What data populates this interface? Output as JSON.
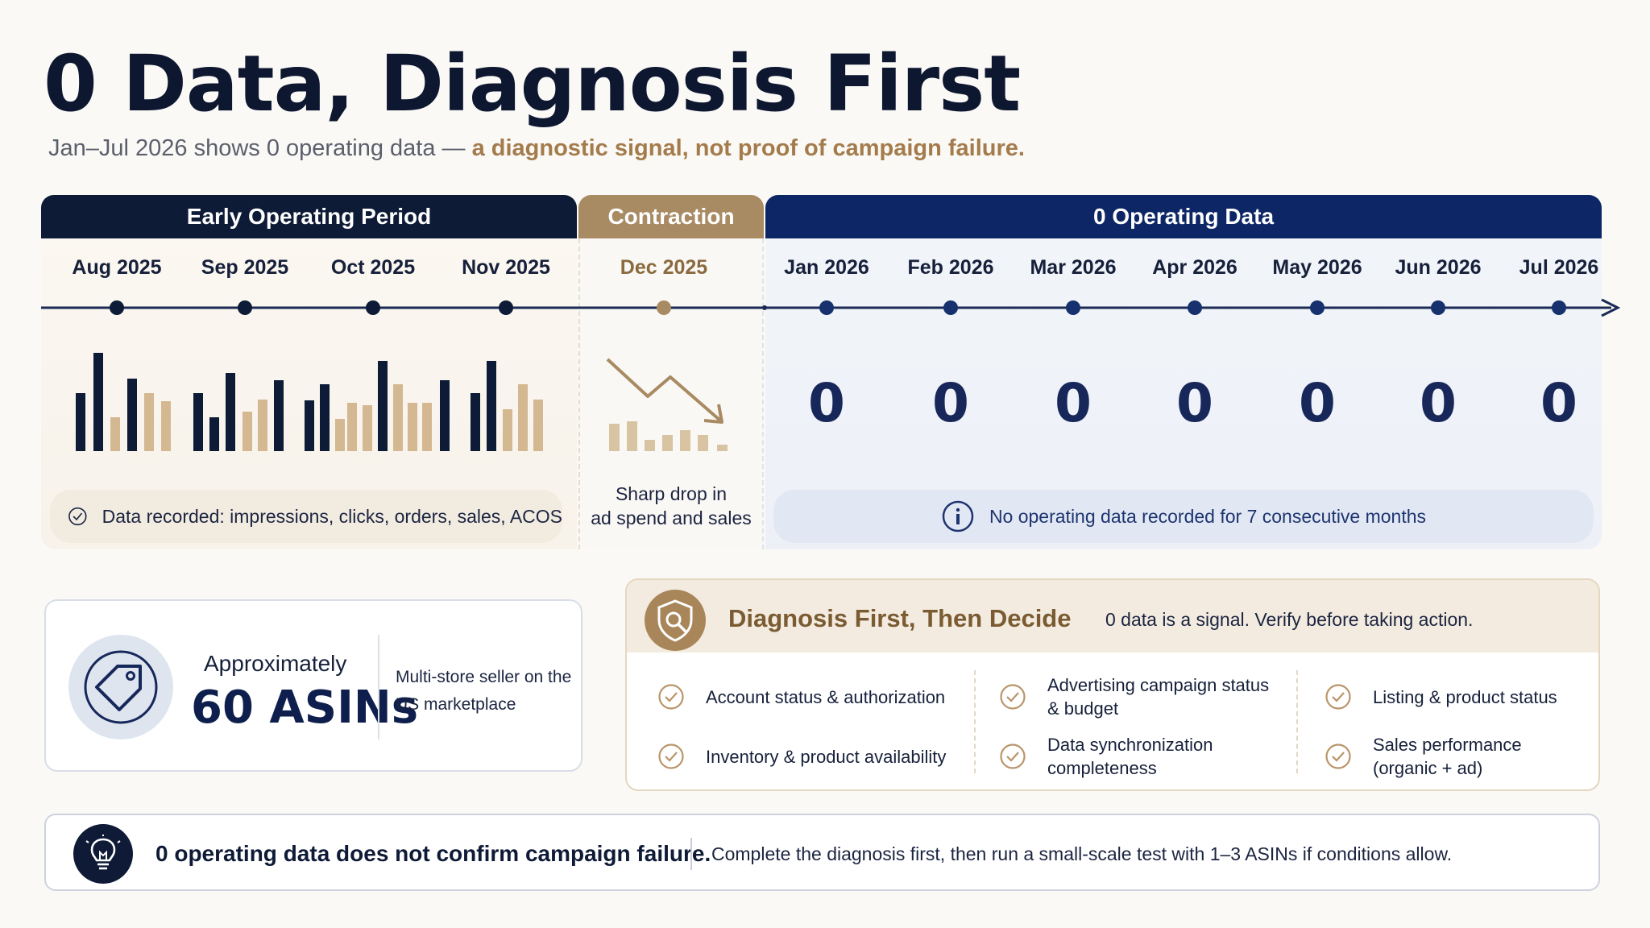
{
  "title": "0 Data, Diagnosis First",
  "subtitle": {
    "lead": "Jan–Jul 2026 shows 0 operating data — ",
    "accent": "a diagnostic signal, not proof of campaign failure."
  },
  "periods": {
    "early": "Early Operating Period",
    "contraction": "Contraction",
    "zero": "0 Operating Data"
  },
  "months": [
    "Aug 2025",
    "Sep 2025",
    "Oct 2025",
    "Nov 2025",
    "Dec 2025",
    "Jan 2026",
    "Feb 2026",
    "Mar 2026",
    "Apr 2026",
    "May 2026",
    "Jun 2026",
    "Jul 2026"
  ],
  "zero_values": [
    "0",
    "0",
    "0",
    "0",
    "0",
    "0",
    "0"
  ],
  "early_note": "Data recorded: impressions, clicks, orders, sales, ACOS",
  "contraction_note": [
    "Sharp drop in",
    "ad spend and sales"
  ],
  "zero_note": "No operating data recorded for 7 consecutive months",
  "colors": {
    "navy": "#0d1b36",
    "tan": "#a88a63",
    "blue": "#0d2766",
    "tan_light": "#d4b892"
  },
  "asin": {
    "approx": "Approximately",
    "count": "60 ASINs",
    "desc": "Multi-store seller on the US marketplace",
    "icon": "price-tag-icon"
  },
  "diagnosis": {
    "title": "Diagnosis First, Then Decide",
    "tagline": "0 data is a signal. Verify before taking action.",
    "items": [
      "Account status & authorization",
      "Inventory & product availability",
      "Advertising campaign status & budget",
      "Data synchronization completeness",
      "Listing & product status",
      "Sales performance (organic + ad)"
    ]
  },
  "banner": {
    "main": "0 operating data does not confirm campaign failure.",
    "sub": "Complete the diagnosis first, then run a small-scale test with 1–3 ASINs if conditions allow."
  }
}
